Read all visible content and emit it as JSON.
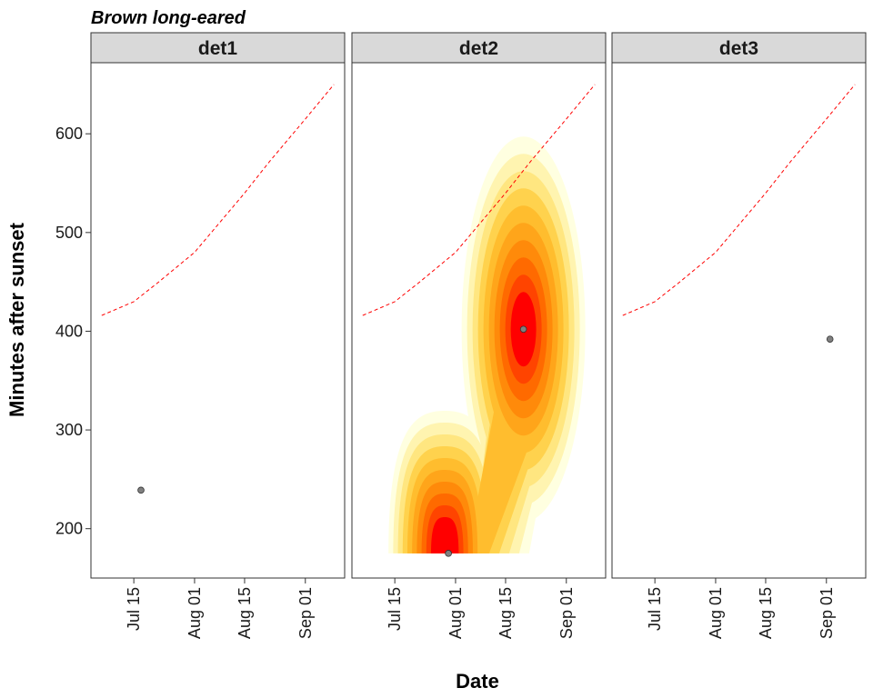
{
  "chart_data": {
    "type": "scatter",
    "title": "Brown long-eared",
    "xlabel": "Date",
    "ylabel": "Minutes after sunset",
    "x_type": "date",
    "xlim": [
      "2023-07-03",
      "2023-09-12"
    ],
    "ylim": [
      150,
      672
    ],
    "x_ticks": [
      {
        "date": "2023-07-15",
        "label": "Jul 15"
      },
      {
        "date": "2023-08-01",
        "label": "Aug 01"
      },
      {
        "date": "2023-08-15",
        "label": "Aug 15"
      },
      {
        "date": "2023-09-01",
        "label": "Sep 01"
      }
    ],
    "y_ticks": [
      200,
      300,
      400,
      500,
      600
    ],
    "grid": false,
    "panels": [
      {
        "label": "det1",
        "points": [
          {
            "x": "2023-07-17",
            "y": 239
          }
        ],
        "density_peaks": []
      },
      {
        "label": "det2",
        "points": [
          {
            "x": "2023-07-30",
            "y": 175
          },
          {
            "x": "2023-08-20",
            "y": 402
          }
        ],
        "density_peaks": [
          {
            "x": "2023-07-29",
            "y": 185
          },
          {
            "x": "2023-08-20",
            "y": 402
          }
        ]
      },
      {
        "label": "det3",
        "points": [
          {
            "x": "2023-09-02",
            "y": 392
          }
        ],
        "density_peaks": []
      }
    ],
    "reference_line": {
      "color": "#ff0000",
      "style": "dashed",
      "points": [
        {
          "x": "2023-07-06",
          "y": 416
        },
        {
          "x": "2023-07-15",
          "y": 430
        },
        {
          "x": "2023-07-22",
          "y": 450
        },
        {
          "x": "2023-08-01",
          "y": 480
        },
        {
          "x": "2023-08-08",
          "y": 510
        },
        {
          "x": "2023-08-15",
          "y": 540
        },
        {
          "x": "2023-08-22",
          "y": 572
        },
        {
          "x": "2023-09-01",
          "y": 615
        },
        {
          "x": "2023-09-09",
          "y": 650
        }
      ]
    },
    "density_colors": [
      "#ffffe0",
      "#fff4b0",
      "#ffe680",
      "#ffd24d",
      "#ffbd2e",
      "#ffa51a",
      "#ff8a0a",
      "#ff6a00",
      "#ff4400",
      "#ff0000"
    ],
    "point_color": "#808080"
  }
}
